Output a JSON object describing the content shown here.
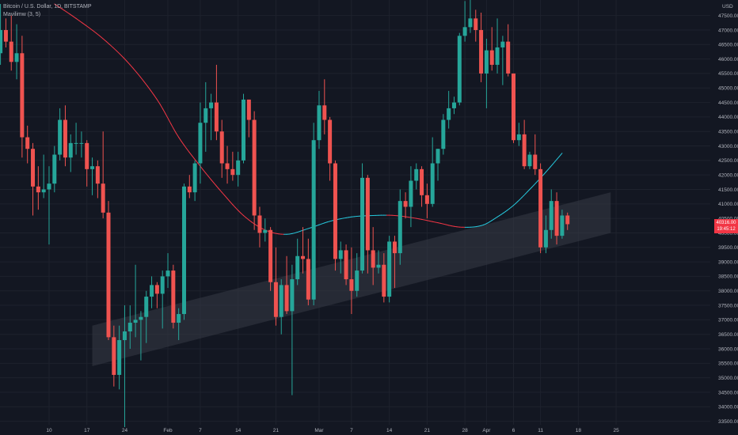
{
  "header": {
    "title": "Bitcoin / U.S. Dollar, 1D, BITSTAMP",
    "indicator": "Mavilimw (3, 5)"
  },
  "currency_label": "USD",
  "last_price": {
    "value": "40316.00",
    "countdown": "19:45:12",
    "color": "#f23645"
  },
  "colors": {
    "background": "#131722",
    "grid": "#1e222d",
    "up": "#26a69a",
    "down": "#ef5350",
    "ma_bear": "#f23645",
    "ma_bull": "#26c6da",
    "channel": "#363a45"
  },
  "chart_data": {
    "type": "candlestick",
    "title": "Bitcoin / U.S. Dollar, 1D, BITSTAMP",
    "y_axis": {
      "label": "USD",
      "range": [
        33300,
        47900
      ],
      "ticks": [
        33500,
        34000,
        34500,
        35000,
        35500,
        36000,
        36500,
        37000,
        37500,
        38000,
        38500,
        39000,
        39500,
        40000,
        40500,
        41000,
        41500,
        42000,
        42500,
        43000,
        43500,
        44000,
        44500,
        45000,
        45500,
        46000,
        46500,
        47000,
        47500
      ],
      "tick_labels": [
        "33500.00",
        "34000.00",
        "34500.00",
        "35000.00",
        "35500.00",
        "36000.00",
        "36500.00",
        "37000.00",
        "37500.00",
        "38000.00",
        "38500.00",
        "39000.00",
        "39500.00",
        "40000.00",
        "40500.00",
        "41000.00",
        "41500.00",
        "42000.00",
        "42500.00",
        "43000.00",
        "43500.00",
        "44000.00",
        "44500.00",
        "45000.00",
        "45500.00",
        "46000.00",
        "46500.00",
        "47000.00",
        "47500.00"
      ]
    },
    "x_axis": {
      "first_date": "2022-01-01",
      "last_date": "2022-04-25",
      "ticks": [
        {
          "date": "2022-01-10",
          "label": "10"
        },
        {
          "date": "2022-01-17",
          "label": "17"
        },
        {
          "date": "2022-01-24",
          "label": "24"
        },
        {
          "date": "2022-02-01",
          "label": "Feb"
        },
        {
          "date": "2022-02-07",
          "label": "7"
        },
        {
          "date": "2022-02-14",
          "label": "14"
        },
        {
          "date": "2022-02-21",
          "label": "21"
        },
        {
          "date": "2022-03-01",
          "label": "Mar"
        },
        {
          "date": "2022-03-07",
          "label": "7"
        },
        {
          "date": "2022-03-14",
          "label": "14"
        },
        {
          "date": "2022-03-21",
          "label": "21"
        },
        {
          "date": "2022-03-28",
          "label": "28"
        },
        {
          "date": "2022-04-01",
          "label": "Apr"
        },
        {
          "date": "2022-04-06",
          "label": "6"
        },
        {
          "date": "2022-04-11",
          "label": "11"
        },
        {
          "date": "2022-04-18",
          "label": "18"
        },
        {
          "date": "2022-04-25",
          "label": "25"
        }
      ]
    },
    "candles": [
      {
        "date": "2022-01-01",
        "o": 46200,
        "h": 47900,
        "l": 45800,
        "c": 47000
      },
      {
        "date": "2022-01-02",
        "o": 47000,
        "h": 47400,
        "l": 46400,
        "c": 46600
      },
      {
        "date": "2022-01-03",
        "o": 46600,
        "h": 47500,
        "l": 45600,
        "c": 45900
      },
      {
        "date": "2022-01-04",
        "o": 45900,
        "h": 47200,
        "l": 45300,
        "c": 46200
      },
      {
        "date": "2022-01-05",
        "o": 46200,
        "h": 46800,
        "l": 42600,
        "c": 43300
      },
      {
        "date": "2022-01-06",
        "o": 43300,
        "h": 43700,
        "l": 42400,
        "c": 42900
      },
      {
        "date": "2022-01-07",
        "o": 42900,
        "h": 43100,
        "l": 40600,
        "c": 41600
      },
      {
        "date": "2022-01-08",
        "o": 41600,
        "h": 42300,
        "l": 40800,
        "c": 41400
      },
      {
        "date": "2022-01-09",
        "o": 41400,
        "h": 42700,
        "l": 41200,
        "c": 41500
      },
      {
        "date": "2022-01-10",
        "o": 41500,
        "h": 42300,
        "l": 39600,
        "c": 41700
      },
      {
        "date": "2022-01-11",
        "o": 41700,
        "h": 43000,
        "l": 41400,
        "c": 42700
      },
      {
        "date": "2022-01-12",
        "o": 42700,
        "h": 44300,
        "l": 42500,
        "c": 43900
      },
      {
        "date": "2022-01-13",
        "o": 43900,
        "h": 44400,
        "l": 42300,
        "c": 42600
      },
      {
        "date": "2022-01-14",
        "o": 42600,
        "h": 43400,
        "l": 42100,
        "c": 43100
      },
      {
        "date": "2022-01-15",
        "o": 43100,
        "h": 43800,
        "l": 42700,
        "c": 43100
      },
      {
        "date": "2022-01-16",
        "o": 43100,
        "h": 43500,
        "l": 42600,
        "c": 43100
      },
      {
        "date": "2022-01-17",
        "o": 43100,
        "h": 43200,
        "l": 41600,
        "c": 42200
      },
      {
        "date": "2022-01-18",
        "o": 42200,
        "h": 42600,
        "l": 41300,
        "c": 42300
      },
      {
        "date": "2022-01-19",
        "o": 42300,
        "h": 42500,
        "l": 41200,
        "c": 41700
      },
      {
        "date": "2022-01-20",
        "o": 41700,
        "h": 43500,
        "l": 40500,
        "c": 40700
      },
      {
        "date": "2022-01-21",
        "o": 40700,
        "h": 41100,
        "l": 36300,
        "c": 36400
      },
      {
        "date": "2022-01-22",
        "o": 36400,
        "h": 36800,
        "l": 34700,
        "c": 35100
      },
      {
        "date": "2022-01-23",
        "o": 35100,
        "h": 36800,
        "l": 34600,
        "c": 36300
      },
      {
        "date": "2022-01-24",
        "o": 36300,
        "h": 37500,
        "l": 33300,
        "c": 36600
      },
      {
        "date": "2022-01-25",
        "o": 36600,
        "h": 37500,
        "l": 36000,
        "c": 36900
      },
      {
        "date": "2022-01-26",
        "o": 36900,
        "h": 38900,
        "l": 36400,
        "c": 37000
      },
      {
        "date": "2022-01-27",
        "o": 37000,
        "h": 37300,
        "l": 35600,
        "c": 37100
      },
      {
        "date": "2022-01-28",
        "o": 37100,
        "h": 38000,
        "l": 36200,
        "c": 37800
      },
      {
        "date": "2022-01-29",
        "o": 37800,
        "h": 38500,
        "l": 37400,
        "c": 38200
      },
      {
        "date": "2022-01-30",
        "o": 38200,
        "h": 38300,
        "l": 37400,
        "c": 37900
      },
      {
        "date": "2022-01-31",
        "o": 37900,
        "h": 38700,
        "l": 36700,
        "c": 38500
      },
      {
        "date": "2022-02-01",
        "o": 38500,
        "h": 39300,
        "l": 38100,
        "c": 38700
      },
      {
        "date": "2022-02-02",
        "o": 38700,
        "h": 38900,
        "l": 36700,
        "c": 36900
      },
      {
        "date": "2022-02-03",
        "o": 36900,
        "h": 37400,
        "l": 36300,
        "c": 37200
      },
      {
        "date": "2022-02-04",
        "o": 37200,
        "h": 41700,
        "l": 37000,
        "c": 41600
      },
      {
        "date": "2022-02-05",
        "o": 41600,
        "h": 42000,
        "l": 41200,
        "c": 41400
      },
      {
        "date": "2022-02-06",
        "o": 41400,
        "h": 42500,
        "l": 41100,
        "c": 42400
      },
      {
        "date": "2022-02-07",
        "o": 42400,
        "h": 44500,
        "l": 41700,
        "c": 43800
      },
      {
        "date": "2022-02-08",
        "o": 43800,
        "h": 45200,
        "l": 42800,
        "c": 44300
      },
      {
        "date": "2022-02-09",
        "o": 44300,
        "h": 44800,
        "l": 43200,
        "c": 44500
      },
      {
        "date": "2022-02-10",
        "o": 44500,
        "h": 45800,
        "l": 43200,
        "c": 43500
      },
      {
        "date": "2022-02-11",
        "o": 43500,
        "h": 43900,
        "l": 41900,
        "c": 42400
      },
      {
        "date": "2022-02-12",
        "o": 42400,
        "h": 43000,
        "l": 41700,
        "c": 42200
      },
      {
        "date": "2022-02-13",
        "o": 42200,
        "h": 42800,
        "l": 41800,
        "c": 42000
      },
      {
        "date": "2022-02-14",
        "o": 42000,
        "h": 42800,
        "l": 41600,
        "c": 42500
      },
      {
        "date": "2022-02-15",
        "o": 42500,
        "h": 44800,
        "l": 42400,
        "c": 44600
      },
      {
        "date": "2022-02-16",
        "o": 44600,
        "h": 44600,
        "l": 43300,
        "c": 43900
      },
      {
        "date": "2022-02-17",
        "o": 43900,
        "h": 44200,
        "l": 40100,
        "c": 40600
      },
      {
        "date": "2022-02-18",
        "o": 40600,
        "h": 40900,
        "l": 39500,
        "c": 40000
      },
      {
        "date": "2022-02-19",
        "o": 40000,
        "h": 40500,
        "l": 39700,
        "c": 40100
      },
      {
        "date": "2022-02-20",
        "o": 40100,
        "h": 40200,
        "l": 38000,
        "c": 38300
      },
      {
        "date": "2022-02-21",
        "o": 38300,
        "h": 39500,
        "l": 36800,
        "c": 37100
      },
      {
        "date": "2022-02-22",
        "o": 37100,
        "h": 38400,
        "l": 36500,
        "c": 38200
      },
      {
        "date": "2022-02-23",
        "o": 38200,
        "h": 39200,
        "l": 37200,
        "c": 37300
      },
      {
        "date": "2022-02-24",
        "o": 37300,
        "h": 38900,
        "l": 34400,
        "c": 38400
      },
      {
        "date": "2022-02-25",
        "o": 38400,
        "h": 39800,
        "l": 38200,
        "c": 39200
      },
      {
        "date": "2022-02-26",
        "o": 39200,
        "h": 40200,
        "l": 38600,
        "c": 39100
      },
      {
        "date": "2022-02-27",
        "o": 39100,
        "h": 39800,
        "l": 37500,
        "c": 37700
      },
      {
        "date": "2022-02-28",
        "o": 37700,
        "h": 43800,
        "l": 37500,
        "c": 43200
      },
      {
        "date": "2022-03-01",
        "o": 43200,
        "h": 44900,
        "l": 42900,
        "c": 44400
      },
      {
        "date": "2022-03-02",
        "o": 44400,
        "h": 45300,
        "l": 43400,
        "c": 43900
      },
      {
        "date": "2022-03-03",
        "o": 43900,
        "h": 44000,
        "l": 41800,
        "c": 42400
      },
      {
        "date": "2022-03-04",
        "o": 42400,
        "h": 42500,
        "l": 38700,
        "c": 39100
      },
      {
        "date": "2022-03-05",
        "o": 39100,
        "h": 39700,
        "l": 38600,
        "c": 39400
      },
      {
        "date": "2022-03-06",
        "o": 39400,
        "h": 39600,
        "l": 38200,
        "c": 38400
      },
      {
        "date": "2022-03-07",
        "o": 38400,
        "h": 39500,
        "l": 37200,
        "c": 38000
      },
      {
        "date": "2022-03-08",
        "o": 38000,
        "h": 39300,
        "l": 37800,
        "c": 38700
      },
      {
        "date": "2022-03-09",
        "o": 38700,
        "h": 42400,
        "l": 38600,
        "c": 41900
      },
      {
        "date": "2022-03-10",
        "o": 41900,
        "h": 42000,
        "l": 38600,
        "c": 39400
      },
      {
        "date": "2022-03-11",
        "o": 39400,
        "h": 40200,
        "l": 38200,
        "c": 38800
      },
      {
        "date": "2022-03-12",
        "o": 38800,
        "h": 39400,
        "l": 38600,
        "c": 38900
      },
      {
        "date": "2022-03-13",
        "o": 38900,
        "h": 39300,
        "l": 37600,
        "c": 37800
      },
      {
        "date": "2022-03-14",
        "o": 37800,
        "h": 39900,
        "l": 37600,
        "c": 39700
      },
      {
        "date": "2022-03-15",
        "o": 39700,
        "h": 39900,
        "l": 38100,
        "c": 39300
      },
      {
        "date": "2022-03-16",
        "o": 39300,
        "h": 41500,
        "l": 38900,
        "c": 41100
      },
      {
        "date": "2022-03-17",
        "o": 41100,
        "h": 41400,
        "l": 40500,
        "c": 40900
      },
      {
        "date": "2022-03-18",
        "o": 40900,
        "h": 42300,
        "l": 40200,
        "c": 41800
      },
      {
        "date": "2022-03-19",
        "o": 41800,
        "h": 42400,
        "l": 41500,
        "c": 42200
      },
      {
        "date": "2022-03-20",
        "o": 42200,
        "h": 42300,
        "l": 40900,
        "c": 41300
      },
      {
        "date": "2022-03-21",
        "o": 41300,
        "h": 41700,
        "l": 40500,
        "c": 41000
      },
      {
        "date": "2022-03-22",
        "o": 41000,
        "h": 43300,
        "l": 40900,
        "c": 42400
      },
      {
        "date": "2022-03-23",
        "o": 42400,
        "h": 42900,
        "l": 41800,
        "c": 42900
      },
      {
        "date": "2022-03-24",
        "o": 42900,
        "h": 44100,
        "l": 42700,
        "c": 43900
      },
      {
        "date": "2022-03-25",
        "o": 43900,
        "h": 44900,
        "l": 43600,
        "c": 44300
      },
      {
        "date": "2022-03-26",
        "o": 44300,
        "h": 44700,
        "l": 44100,
        "c": 44500
      },
      {
        "date": "2022-03-27",
        "o": 44500,
        "h": 46900,
        "l": 44400,
        "c": 46800
      },
      {
        "date": "2022-03-28",
        "o": 46800,
        "h": 48000,
        "l": 46600,
        "c": 47100
      },
      {
        "date": "2022-03-29",
        "o": 47100,
        "h": 48100,
        "l": 46900,
        "c": 47400
      },
      {
        "date": "2022-03-30",
        "o": 47400,
        "h": 47700,
        "l": 46600,
        "c": 47000
      },
      {
        "date": "2022-03-31",
        "o": 47000,
        "h": 47600,
        "l": 45200,
        "c": 45500
      },
      {
        "date": "2022-04-01",
        "o": 45500,
        "h": 46700,
        "l": 44300,
        "c": 46300
      },
      {
        "date": "2022-04-02",
        "o": 46300,
        "h": 47100,
        "l": 45600,
        "c": 45800
      },
      {
        "date": "2022-04-03",
        "o": 45800,
        "h": 47400,
        "l": 45500,
        "c": 46400
      },
      {
        "date": "2022-04-04",
        "o": 46400,
        "h": 46800,
        "l": 45100,
        "c": 46600
      },
      {
        "date": "2022-04-05",
        "o": 46600,
        "h": 47200,
        "l": 45400,
        "c": 45500
      },
      {
        "date": "2022-04-06",
        "o": 45500,
        "h": 45500,
        "l": 43100,
        "c": 43200
      },
      {
        "date": "2022-04-07",
        "o": 43200,
        "h": 43800,
        "l": 43000,
        "c": 43400
      },
      {
        "date": "2022-04-08",
        "o": 43400,
        "h": 43900,
        "l": 42200,
        "c": 42300
      },
      {
        "date": "2022-04-09",
        "o": 42300,
        "h": 42800,
        "l": 42200,
        "c": 42700
      },
      {
        "date": "2022-04-10",
        "o": 42700,
        "h": 43400,
        "l": 42000,
        "c": 42200
      },
      {
        "date": "2022-04-11",
        "o": 42200,
        "h": 42400,
        "l": 39300,
        "c": 39500
      },
      {
        "date": "2022-04-12",
        "o": 39500,
        "h": 40600,
        "l": 39300,
        "c": 40100
      },
      {
        "date": "2022-04-13",
        "o": 40100,
        "h": 41500,
        "l": 39800,
        "c": 41100
      },
      {
        "date": "2022-04-14",
        "o": 41100,
        "h": 41400,
        "l": 39600,
        "c": 39900
      },
      {
        "date": "2022-04-15",
        "o": 39900,
        "h": 40800,
        "l": 39800,
        "c": 40600
      },
      {
        "date": "2022-04-16",
        "o": 40600,
        "h": 40700,
        "l": 40100,
        "c": 40300
      }
    ],
    "mavilimw": [
      {
        "date": "2022-01-11",
        "v": 47900
      },
      {
        "date": "2022-01-15",
        "v": 47400
      },
      {
        "date": "2022-01-20",
        "v": 46700
      },
      {
        "date": "2022-01-25",
        "v": 45800
      },
      {
        "date": "2022-01-30",
        "v": 44600
      },
      {
        "date": "2022-02-03",
        "v": 43300
      },
      {
        "date": "2022-02-07",
        "v": 42300
      },
      {
        "date": "2022-02-11",
        "v": 41400
      },
      {
        "date": "2022-02-15",
        "v": 40600
      },
      {
        "date": "2022-02-19",
        "v": 40100
      },
      {
        "date": "2022-02-23",
        "v": 39950
      },
      {
        "date": "2022-02-27",
        "v": 40150
      },
      {
        "date": "2022-03-03",
        "v": 40400
      },
      {
        "date": "2022-03-07",
        "v": 40550
      },
      {
        "date": "2022-03-11",
        "v": 40600
      },
      {
        "date": "2022-03-15",
        "v": 40600
      },
      {
        "date": "2022-03-19",
        "v": 40500
      },
      {
        "date": "2022-03-23",
        "v": 40350
      },
      {
        "date": "2022-03-27",
        "v": 40200
      },
      {
        "date": "2022-03-31",
        "v": 40250
      },
      {
        "date": "2022-04-03",
        "v": 40550
      },
      {
        "date": "2022-04-06",
        "v": 40950
      },
      {
        "date": "2022-04-09",
        "v": 41500
      },
      {
        "date": "2022-04-12",
        "v": 42100
      },
      {
        "date": "2022-04-15",
        "v": 42750
      }
    ],
    "channel": {
      "start_date": "2022-01-18",
      "end_date": "2022-04-24",
      "start_upper": 36800,
      "start_lower": 35400,
      "end_upper": 41400,
      "end_lower": 40000
    }
  }
}
